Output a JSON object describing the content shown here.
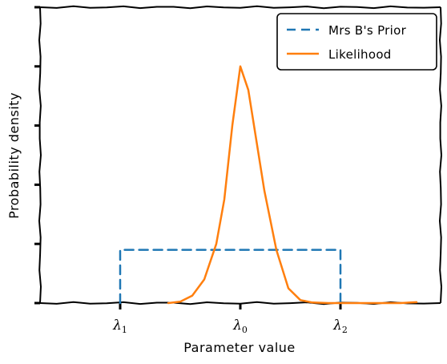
{
  "chart_data": {
    "type": "line",
    "title": "",
    "xlabel": "Parameter value",
    "ylabel": "Probability density",
    "grid": false,
    "legend_position": "top-right",
    "xlim": [
      0,
      1
    ],
    "ylim": [
      0,
      1
    ],
    "xticks": [
      {
        "value": 0.2,
        "label": "λ1"
      },
      {
        "value": 0.5,
        "label": "λ0"
      },
      {
        "value": 0.75,
        "label": "λ2"
      }
    ],
    "series": [
      {
        "name": "Mrs B's Prior",
        "color": "#1f77b4",
        "style": "dashed",
        "x": [
          0.2,
          0.2,
          0.35,
          0.5,
          0.65,
          0.75,
          0.75
        ],
        "y": [
          0.0,
          0.18,
          0.18,
          0.18,
          0.18,
          0.18,
          0.0
        ]
      },
      {
        "name": "Likelihood",
        "color": "#ff7f0e",
        "style": "solid",
        "x": [
          0.32,
          0.35,
          0.38,
          0.41,
          0.44,
          0.46,
          0.48,
          0.5,
          0.52,
          0.54,
          0.56,
          0.59,
          0.62,
          0.65,
          0.68,
          0.72,
          0.9,
          0.94
        ],
        "y": [
          0.0,
          0.005,
          0.025,
          0.08,
          0.2,
          0.35,
          0.6,
          0.8,
          0.72,
          0.55,
          0.38,
          0.18,
          0.05,
          0.01,
          0.002,
          0.0,
          0.0,
          0.003
        ]
      }
    ]
  }
}
